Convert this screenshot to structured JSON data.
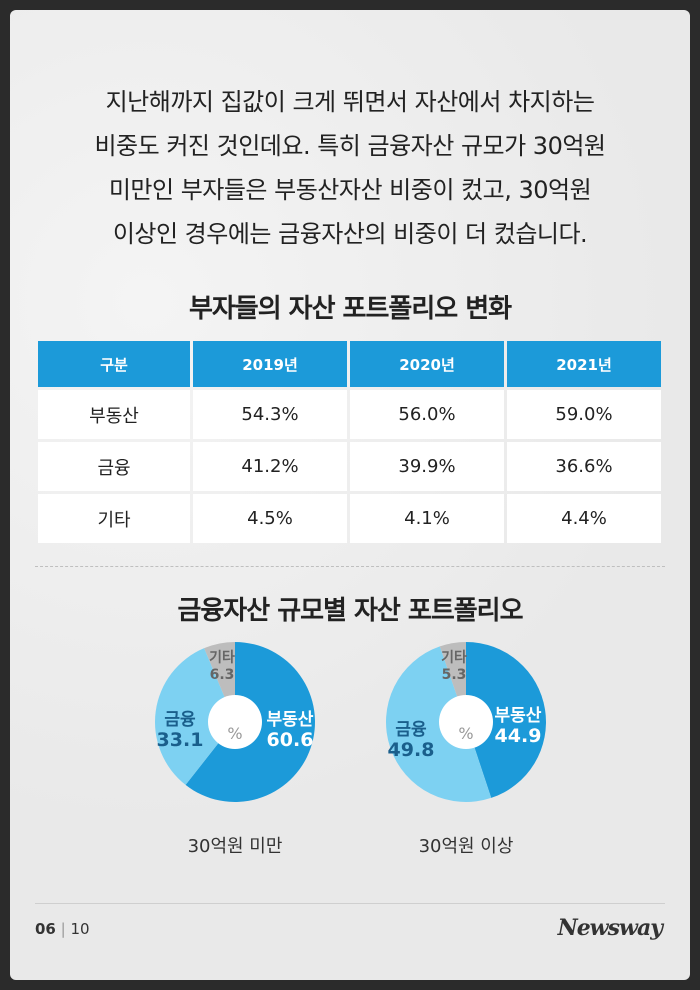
{
  "intro_lines": [
    "지난해까지 집값이 크게 뛰면서 자산에서 차지하는",
    "비중도 커진 것인데요. 특히 금융자산 규모가 30억원",
    "미만인 부자들은 부동산자산 비중이 컸고, 30억원",
    "이상인 경우에는 금융자산의 비중이 더 컸습니다."
  ],
  "table_title": "부자들의 자산 포트폴리오 변화",
  "table": {
    "headers": [
      "구분",
      "2019년",
      "2020년",
      "2021년"
    ],
    "rows": [
      [
        "부동산",
        "54.3%",
        "56.0%",
        "59.0%"
      ],
      [
        "금융",
        "41.2%",
        "39.9%",
        "36.6%"
      ],
      [
        "기타",
        "4.5%",
        "4.1%",
        "4.4%"
      ]
    ]
  },
  "pie_title": "금융자산 규모별 자산 포트폴리오",
  "pies": [
    {
      "caption": "30억원 미만",
      "center_label": "%",
      "slices": [
        {
          "label": "부동산",
          "value": "60.6",
          "color": "#1c9ad9"
        },
        {
          "label": "금융",
          "value": "33.1",
          "color": "#7dd1f2"
        },
        {
          "label": "기타",
          "value": "6.3",
          "color": "#bdbdbd"
        }
      ]
    },
    {
      "caption": "30억원 이상",
      "center_label": "%",
      "slices": [
        {
          "label": "부동산",
          "value": "44.9",
          "color": "#1c9ad9"
        },
        {
          "label": "금융",
          "value": "49.8",
          "color": "#7dd1f2"
        },
        {
          "label": "기타",
          "value": "5.3",
          "color": "#bdbdbd"
        }
      ]
    }
  ],
  "footer": {
    "page": "06",
    "sep": "|",
    "total": "10",
    "logo": "Newsway"
  }
}
